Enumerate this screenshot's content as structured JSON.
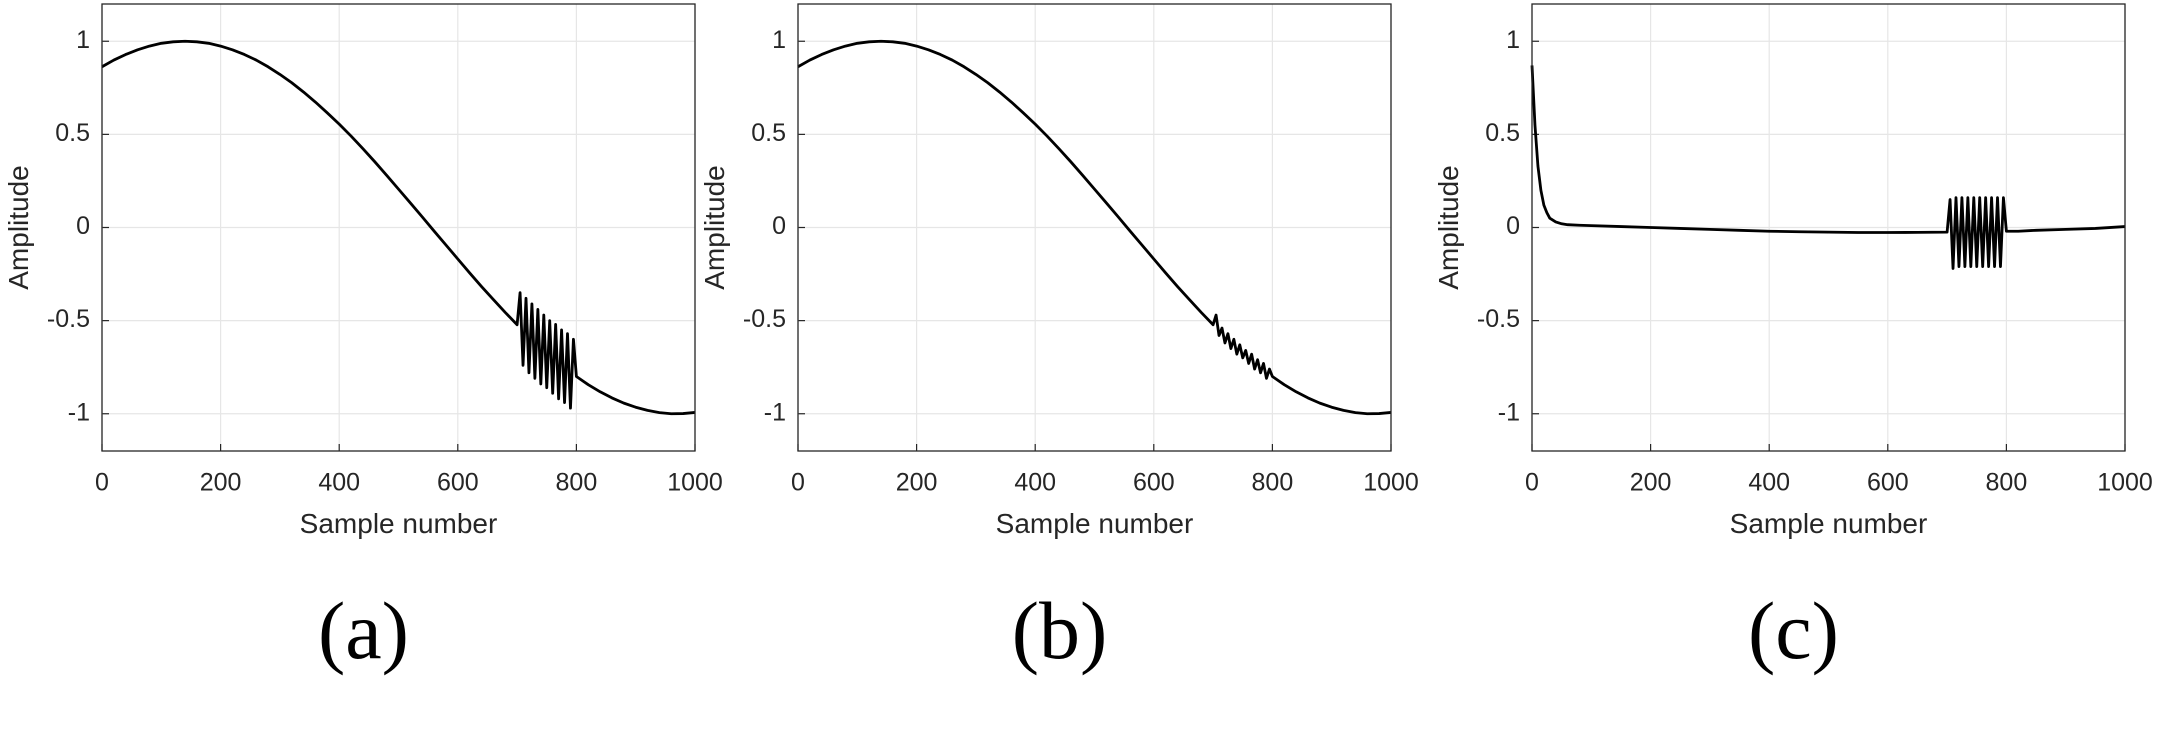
{
  "chart_data": [
    {
      "type": "line",
      "caption": "(a)",
      "xlabel": "Sample number",
      "ylabel": "Amplitude",
      "xlim": [
        0,
        1000
      ],
      "ylim": [
        -1.2,
        1.2
      ],
      "xticks": [
        0,
        200,
        400,
        600,
        800,
        1000
      ],
      "yticks": [
        -1,
        -0.5,
        0,
        0.5,
        1
      ],
      "grid": true,
      "color": "#000000",
      "x": [
        0,
        20,
        40,
        60,
        80,
        100,
        120,
        140,
        160,
        180,
        200,
        220,
        240,
        260,
        280,
        300,
        320,
        340,
        360,
        380,
        400,
        420,
        440,
        460,
        480,
        500,
        520,
        540,
        560,
        580,
        600,
        620,
        640,
        660,
        680,
        700,
        705,
        710,
        715,
        720,
        725,
        730,
        735,
        740,
        745,
        750,
        755,
        760,
        765,
        770,
        775,
        780,
        785,
        790,
        795,
        800,
        820,
        840,
        860,
        880,
        900,
        920,
        940,
        960,
        980,
        1000
      ],
      "values": [
        0.863,
        0.899,
        0.929,
        0.954,
        0.974,
        0.989,
        0.997,
        1,
        0.997,
        0.989,
        0.974,
        0.954,
        0.929,
        0.899,
        0.863,
        0.822,
        0.777,
        0.727,
        0.673,
        0.615,
        0.555,
        0.491,
        0.423,
        0.353,
        0.28,
        0.206,
        0.132,
        0.057,
        -0.019,
        -0.094,
        -0.169,
        -0.244,
        -0.317,
        -0.387,
        -0.456,
        -0.522,
        -0.35,
        -0.74,
        -0.38,
        -0.78,
        -0.41,
        -0.81,
        -0.44,
        -0.84,
        -0.47,
        -0.86,
        -0.5,
        -0.89,
        -0.52,
        -0.92,
        -0.55,
        -0.94,
        -0.57,
        -0.97,
        -0.6,
        -0.8,
        -0.844,
        -0.882,
        -0.915,
        -0.943,
        -0.965,
        -0.982,
        -0.994,
        -1.0,
        -0.999,
        -0.993
      ]
    },
    {
      "type": "line",
      "caption": "(b)",
      "xlabel": "Sample number",
      "ylabel": "Amplitude",
      "xlim": [
        0,
        1000
      ],
      "ylim": [
        -1.2,
        1.2
      ],
      "xticks": [
        0,
        200,
        400,
        600,
        800,
        1000
      ],
      "yticks": [
        -1,
        -0.5,
        0,
        0.5,
        1
      ],
      "grid": true,
      "color": "#000000",
      "x": [
        0,
        20,
        40,
        60,
        80,
        100,
        120,
        140,
        160,
        180,
        200,
        220,
        240,
        260,
        280,
        300,
        320,
        340,
        360,
        380,
        400,
        420,
        440,
        460,
        480,
        500,
        520,
        540,
        560,
        580,
        600,
        620,
        640,
        660,
        680,
        700,
        705,
        710,
        715,
        720,
        725,
        730,
        735,
        740,
        745,
        750,
        755,
        760,
        765,
        770,
        775,
        780,
        785,
        790,
        795,
        800,
        820,
        840,
        860,
        880,
        900,
        920,
        940,
        960,
        980,
        1000
      ],
      "values": [
        0.863,
        0.899,
        0.929,
        0.954,
        0.974,
        0.989,
        0.997,
        1,
        0.997,
        0.989,
        0.974,
        0.954,
        0.929,
        0.899,
        0.863,
        0.822,
        0.777,
        0.727,
        0.673,
        0.615,
        0.555,
        0.491,
        0.423,
        0.353,
        0.28,
        0.206,
        0.132,
        0.057,
        -0.019,
        -0.094,
        -0.169,
        -0.244,
        -0.317,
        -0.387,
        -0.456,
        -0.522,
        -0.47,
        -0.58,
        -0.54,
        -0.62,
        -0.57,
        -0.65,
        -0.6,
        -0.68,
        -0.63,
        -0.7,
        -0.66,
        -0.73,
        -0.68,
        -0.76,
        -0.71,
        -0.78,
        -0.73,
        -0.81,
        -0.76,
        -0.8,
        -0.844,
        -0.882,
        -0.915,
        -0.943,
        -0.965,
        -0.982,
        -0.994,
        -1.0,
        -0.999,
        -0.993
      ]
    },
    {
      "type": "line",
      "caption": "(c)",
      "xlabel": "Sample number",
      "ylabel": "Amplitude",
      "xlim": [
        0,
        1000
      ],
      "ylim": [
        -1.2,
        1.2
      ],
      "xticks": [
        0,
        200,
        400,
        600,
        800,
        1000
      ],
      "yticks": [
        -1,
        -0.5,
        0,
        0.5,
        1
      ],
      "grid": true,
      "color": "#000000",
      "x": [
        0,
        5,
        10,
        15,
        20,
        25,
        30,
        40,
        50,
        60,
        80,
        100,
        150,
        200,
        250,
        300,
        350,
        400,
        450,
        500,
        550,
        600,
        650,
        700,
        705,
        710,
        715,
        720,
        725,
        730,
        735,
        740,
        745,
        750,
        755,
        760,
        765,
        770,
        775,
        780,
        785,
        790,
        795,
        800,
        820,
        850,
        900,
        950,
        1000
      ],
      "values": [
        0.87,
        0.55,
        0.33,
        0.2,
        0.12,
        0.08,
        0.05,
        0.03,
        0.02,
        0.015,
        0.012,
        0.01,
        0.005,
        0,
        -0.005,
        -0.01,
        -0.015,
        -0.02,
        -0.023,
        -0.025,
        -0.027,
        -0.027,
        -0.026,
        -0.025,
        0.15,
        -0.22,
        0.16,
        -0.21,
        0.16,
        -0.21,
        0.16,
        -0.21,
        0.16,
        -0.21,
        0.16,
        -0.21,
        0.16,
        -0.21,
        0.16,
        -0.21,
        0.16,
        -0.21,
        0.16,
        -0.02,
        -0.02,
        -0.015,
        -0.01,
        -0.005,
        0.005
      ]
    }
  ]
}
